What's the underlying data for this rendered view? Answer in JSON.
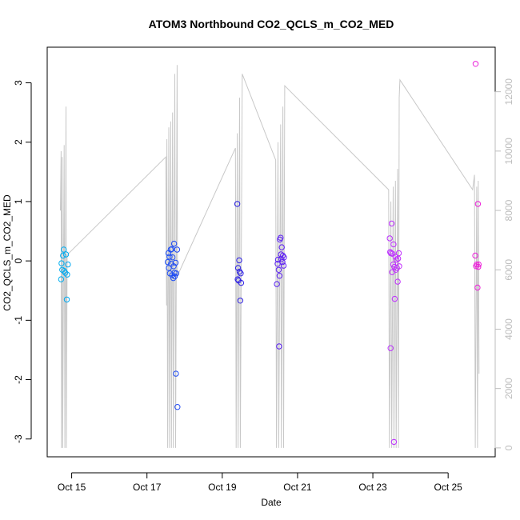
{
  "chart_data": {
    "type": "scatter",
    "title": "ATOM3 Northbound CO2_QCLS_m_CO2_MED",
    "xlabel": "Date",
    "ylabel": "CO2_QCLS_m_CO2_MED",
    "x_ticks": [
      {
        "day": 15,
        "label": "Oct 15"
      },
      {
        "day": 17,
        "label": "Oct 17"
      },
      {
        "day": 19,
        "label": "Oct 19"
      },
      {
        "day": 21,
        "label": "Oct 21"
      },
      {
        "day": 23,
        "label": "Oct 23"
      },
      {
        "day": 25,
        "label": "Oct 25"
      }
    ],
    "xlim_days": [
      14.35,
      26.25
    ],
    "ylim": [
      -3.3,
      3.6
    ],
    "y_ticks": [
      -3,
      -2,
      -1,
      0,
      1,
      2,
      3
    ],
    "y2_ticks": [
      0,
      2000,
      4000,
      6000,
      8000,
      10000,
      12000
    ],
    "y2lim": [
      -300,
      13500
    ],
    "grid": false,
    "point_colors": [
      "#00b0f0",
      "#1e64ff",
      "#2020e0",
      "#8020ff",
      "#c030ff",
      "#ee20d8"
    ],
    "line_color": "#c8c8c8",
    "axis2_color": "#bdbdbd",
    "points": [
      {
        "x": 14.72,
        "y": -0.31
      },
      {
        "x": 14.73,
        "y": -0.04
      },
      {
        "x": 14.75,
        "y": -0.15
      },
      {
        "x": 14.77,
        "y": 0.09
      },
      {
        "x": 14.79,
        "y": 0.19
      },
      {
        "x": 14.8,
        "y": -0.17
      },
      {
        "x": 14.83,
        "y": -0.2
      },
      {
        "x": 14.85,
        "y": 0.11
      },
      {
        "x": 14.87,
        "y": -0.65
      },
      {
        "x": 14.88,
        "y": -0.23
      },
      {
        "x": 14.9,
        "y": -0.06
      },
      {
        "x": 17.55,
        "y": -0.02
      },
      {
        "x": 17.57,
        "y": 0.13
      },
      {
        "x": 17.58,
        "y": -0.12
      },
      {
        "x": 17.6,
        "y": 0.07
      },
      {
        "x": 17.61,
        "y": -0.21
      },
      {
        "x": 17.63,
        "y": 0.19
      },
      {
        "x": 17.64,
        "y": -0.05
      },
      {
        "x": 17.66,
        "y": 0.2
      },
      {
        "x": 17.67,
        "y": -0.24
      },
      {
        "x": 17.68,
        "y": 0.06
      },
      {
        "x": 17.7,
        "y": -0.29
      },
      {
        "x": 17.71,
        "y": -0.09
      },
      {
        "x": 17.72,
        "y": 0.29
      },
      {
        "x": 17.73,
        "y": -0.2
      },
      {
        "x": 17.74,
        "y": -0.26
      },
      {
        "x": 17.76,
        "y": -0.03
      },
      {
        "x": 17.77,
        "y": -1.9
      },
      {
        "x": 17.78,
        "y": -0.21
      },
      {
        "x": 17.8,
        "y": 0.19
      },
      {
        "x": 17.81,
        "y": -2.46
      },
      {
        "x": 19.4,
        "y": 0.96
      },
      {
        "x": 19.41,
        "y": -0.31
      },
      {
        "x": 19.42,
        "y": -0.12
      },
      {
        "x": 19.43,
        "y": -0.33
      },
      {
        "x": 19.45,
        "y": 0.01
      },
      {
        "x": 19.46,
        "y": -0.18
      },
      {
        "x": 19.48,
        "y": -0.67
      },
      {
        "x": 19.49,
        "y": -0.21
      },
      {
        "x": 19.5,
        "y": -0.37
      },
      {
        "x": 20.45,
        "y": -0.39
      },
      {
        "x": 20.47,
        "y": -0.05
      },
      {
        "x": 20.48,
        "y": 0.02
      },
      {
        "x": 20.5,
        "y": -0.15
      },
      {
        "x": 20.51,
        "y": -1.44
      },
      {
        "x": 20.52,
        "y": -0.25
      },
      {
        "x": 20.53,
        "y": 0.36
      },
      {
        "x": 20.55,
        "y": 0.39
      },
      {
        "x": 20.56,
        "y": 0.11
      },
      {
        "x": 20.57,
        "y": 0.03
      },
      {
        "x": 20.58,
        "y": 0.23
      },
      {
        "x": 20.6,
        "y": -0.02
      },
      {
        "x": 20.61,
        "y": 0.09
      },
      {
        "x": 20.63,
        "y": -0.08
      },
      {
        "x": 20.64,
        "y": 0.06
      },
      {
        "x": 23.45,
        "y": 0.38
      },
      {
        "x": 23.46,
        "y": 0.15
      },
      {
        "x": 23.47,
        "y": -1.47
      },
      {
        "x": 23.48,
        "y": 0.13
      },
      {
        "x": 23.5,
        "y": 0.63
      },
      {
        "x": 23.51,
        "y": -0.19
      },
      {
        "x": 23.52,
        "y": 0.12
      },
      {
        "x": 23.54,
        "y": -0.06
      },
      {
        "x": 23.55,
        "y": 0.28
      },
      {
        "x": 23.56,
        "y": -3.05
      },
      {
        "x": 23.57,
        "y": -0.1
      },
      {
        "x": 23.58,
        "y": -0.64
      },
      {
        "x": 23.6,
        "y": 0.07
      },
      {
        "x": 23.61,
        "y": -0.15
      },
      {
        "x": 23.63,
        "y": 0.02
      },
      {
        "x": 23.64,
        "y": -0.12
      },
      {
        "x": 23.66,
        "y": -0.35
      },
      {
        "x": 23.67,
        "y": 0.04
      },
      {
        "x": 23.69,
        "y": 0.13
      },
      {
        "x": 23.7,
        "y": -0.09
      },
      {
        "x": 25.72,
        "y": 0.09
      },
      {
        "x": 25.73,
        "y": 3.32
      },
      {
        "x": 25.74,
        "y": -0.09
      },
      {
        "x": 25.76,
        "y": -0.06
      },
      {
        "x": 25.78,
        "y": -0.45
      },
      {
        "x": 25.79,
        "y": 0.96
      },
      {
        "x": 25.8,
        "y": -0.1
      },
      {
        "x": 25.81,
        "y": -0.06
      }
    ],
    "altitude_series": [
      {
        "x": 14.7,
        "y2": 8000
      },
      {
        "x": 14.72,
        "y2": 10000
      },
      {
        "x": 14.73,
        "y2": 0
      },
      {
        "x": 14.75,
        "y2": 9800
      },
      {
        "x": 14.76,
        "y2": 0
      },
      {
        "x": 14.8,
        "y2": 10200
      },
      {
        "x": 14.82,
        "y": 0,
        "y2": 0
      },
      {
        "x": 14.85,
        "y2": 11500
      },
      {
        "x": 14.86,
        "y2": 0
      },
      {
        "x": 14.88,
        "y2": 6500
      },
      {
        "x": 17.5,
        "y2": 9800
      },
      {
        "x": 17.52,
        "y2": 4800
      },
      {
        "x": 17.53,
        "y2": 10400
      },
      {
        "x": 17.55,
        "y2": 0
      },
      {
        "x": 17.58,
        "y2": 10800
      },
      {
        "x": 17.6,
        "y2": 0
      },
      {
        "x": 17.63,
        "y2": 11000
      },
      {
        "x": 17.65,
        "y2": 0
      },
      {
        "x": 17.68,
        "y2": 11300
      },
      {
        "x": 17.7,
        "y2": 0
      },
      {
        "x": 17.74,
        "y2": 12600
      },
      {
        "x": 17.76,
        "y2": 0
      },
      {
        "x": 17.8,
        "y2": 12900
      },
      {
        "x": 17.81,
        "y2": 5800
      },
      {
        "x": 19.35,
        "y2": 10100
      },
      {
        "x": 19.37,
        "y2": 0
      },
      {
        "x": 19.4,
        "y2": 10600
      },
      {
        "x": 19.42,
        "y2": 0
      },
      {
        "x": 19.46,
        "y2": 11800
      },
      {
        "x": 19.48,
        "y2": 0
      },
      {
        "x": 19.53,
        "y2": 12600
      },
      {
        "x": 20.42,
        "y2": 9700
      },
      {
        "x": 20.44,
        "y2": 0
      },
      {
        "x": 20.48,
        "y2": 10300
      },
      {
        "x": 20.5,
        "y2": 0
      },
      {
        "x": 20.55,
        "y2": 10900
      },
      {
        "x": 20.57,
        "y2": 0
      },
      {
        "x": 20.61,
        "y2": 11500
      },
      {
        "x": 20.63,
        "y2": 0
      },
      {
        "x": 20.66,
        "y2": 12200
      },
      {
        "x": 23.42,
        "y2": 8700
      },
      {
        "x": 23.44,
        "y2": 0
      },
      {
        "x": 23.48,
        "y2": 8300
      },
      {
        "x": 23.5,
        "y2": 0
      },
      {
        "x": 23.54,
        "y2": 8800
      },
      {
        "x": 23.56,
        "y2": 0
      },
      {
        "x": 23.6,
        "y2": 9000
      },
      {
        "x": 23.62,
        "y2": 0
      },
      {
        "x": 23.66,
        "y2": 9400
      },
      {
        "x": 23.68,
        "y2": 0
      },
      {
        "x": 23.7,
        "y2": 11800
      },
      {
        "x": 23.72,
        "y2": 12400
      },
      {
        "x": 25.65,
        "y2": 8700
      },
      {
        "x": 25.7,
        "y2": 9200
      },
      {
        "x": 25.72,
        "y2": 0
      },
      {
        "x": 25.76,
        "y2": 8800
      },
      {
        "x": 25.78,
        "y2": 0
      },
      {
        "x": 25.8,
        "y2": 9000
      },
      {
        "x": 25.82,
        "y2": 2500
      }
    ]
  }
}
